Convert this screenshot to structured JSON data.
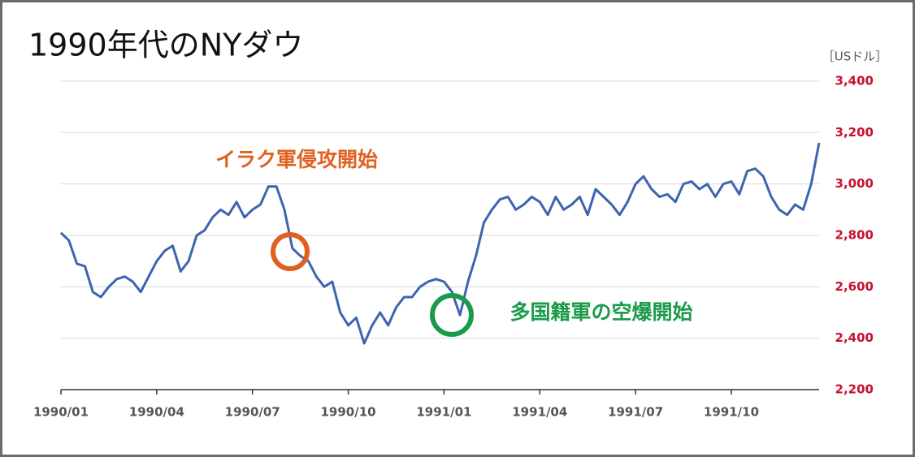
{
  "chart_data": {
    "type": "line",
    "title": "1990年代のNYダウ",
    "y_axis_label": "［USドル］",
    "categories": [
      "1990/01",
      null,
      null,
      null,
      null,
      null,
      null,
      null,
      null,
      null,
      null,
      null,
      "1990/04",
      null,
      null,
      null,
      null,
      null,
      null,
      null,
      null,
      null,
      null,
      null,
      "1990/07",
      null,
      null,
      null,
      null,
      null,
      null,
      null,
      null,
      null,
      null,
      null,
      "1990/10",
      null,
      null,
      null,
      null,
      null,
      null,
      null,
      null,
      null,
      null,
      null,
      "1991/01",
      null,
      null,
      null,
      null,
      null,
      null,
      null,
      null,
      null,
      null,
      null,
      "1991/04",
      null,
      null,
      null,
      null,
      null,
      null,
      null,
      null,
      null,
      null,
      null,
      "1991/07",
      null,
      null,
      null,
      null,
      null,
      null,
      null,
      null,
      null,
      null,
      null,
      "1991/10",
      null,
      null,
      null,
      null,
      null,
      null,
      null,
      null,
      null,
      null,
      null
    ],
    "series": [
      {
        "name": "NYダウ",
        "color": "#3d64b0",
        "values": [
          2810,
          2780,
          2690,
          2680,
          2580,
          2560,
          2600,
          2630,
          2640,
          2620,
          2580,
          2640,
          2700,
          2740,
          2760,
          2660,
          2700,
          2800,
          2820,
          2870,
          2900,
          2880,
          2930,
          2870,
          2900,
          2920,
          2990,
          2990,
          2900,
          2750,
          2720,
          2700,
          2640,
          2600,
          2620,
          2500,
          2450,
          2480,
          2380,
          2450,
          2500,
          2450,
          2520,
          2560,
          2560,
          2600,
          2620,
          2630,
          2620,
          2580,
          2490,
          2620,
          2720,
          2850,
          2900,
          2940,
          2950,
          2900,
          2920,
          2950,
          2930,
          2880,
          2950,
          2900,
          2920,
          2950,
          2880,
          2980,
          2950,
          2920,
          2880,
          2930,
          3000,
          3030,
          2980,
          2950,
          2960,
          2930,
          3000,
          3010,
          2980,
          3000,
          2950,
          3000,
          3010,
          2960,
          3050,
          3060,
          3030,
          2950,
          2900,
          2880,
          2920,
          2900,
          3000,
          3160
        ]
      }
    ],
    "annotations": [
      "イラク軍侵攻開始",
      "多国籍軍の空爆開始"
    ],
    "ylim": [
      2200,
      3400
    ],
    "yticks": [
      {
        "value": 2200,
        "label": "2,200"
      },
      {
        "value": 2400,
        "label": "2,400"
      },
      {
        "value": 2600,
        "label": "2,600"
      },
      {
        "value": 2800,
        "label": "2,800"
      },
      {
        "value": 3000,
        "label": "3,000"
      },
      {
        "value": 3200,
        "label": "3,200"
      },
      {
        "value": 3400,
        "label": "3,400"
      }
    ],
    "grid": true
  }
}
